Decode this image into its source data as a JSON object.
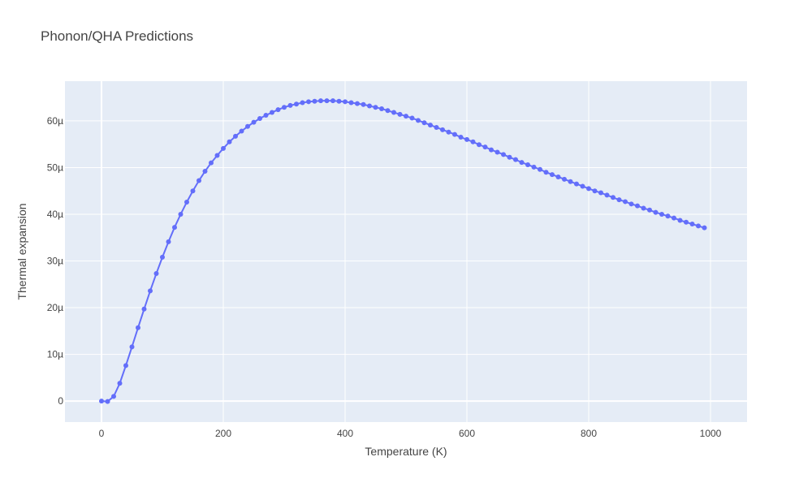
{
  "chart_data": {
    "type": "line",
    "title": "Phonon/QHA Predictions",
    "xlabel": "Temperature (K)",
    "ylabel": "Thermal expansion",
    "xlim": [
      -60,
      1060
    ],
    "ylim": [
      -4.5,
      68.5
    ],
    "x_ticks": [
      0,
      200,
      400,
      600,
      800,
      1000
    ],
    "x_tick_labels": [
      "0",
      "200",
      "400",
      "600",
      "800",
      "1000"
    ],
    "y_ticks": [
      0,
      10,
      20,
      30,
      40,
      50,
      60
    ],
    "y_tick_labels": [
      "0",
      "10µ",
      "20µ",
      "30µ",
      "40µ",
      "50µ",
      "60µ"
    ],
    "grid": true,
    "colors": {
      "plot_bg": "#e5ecf6",
      "series": "#636efa"
    },
    "series": [
      {
        "mode": "lines+markers",
        "x": [
          0,
          10,
          20,
          30,
          40,
          50,
          60,
          70,
          80,
          90,
          100,
          110,
          120,
          130,
          140,
          150,
          160,
          170,
          180,
          190,
          200,
          210,
          220,
          230,
          240,
          250,
          260,
          270,
          280,
          290,
          300,
          310,
          320,
          330,
          340,
          350,
          360,
          370,
          380,
          390,
          400,
          410,
          420,
          430,
          440,
          450,
          460,
          470,
          480,
          490,
          500,
          510,
          520,
          530,
          540,
          550,
          560,
          570,
          580,
          590,
          600,
          610,
          620,
          630,
          640,
          650,
          660,
          670,
          680,
          690,
          700,
          710,
          720,
          730,
          740,
          750,
          760,
          770,
          780,
          790,
          800,
          810,
          820,
          830,
          840,
          850,
          860,
          870,
          880,
          890,
          900,
          910,
          920,
          930,
          940,
          950,
          960,
          970,
          980,
          990
        ],
        "y": [
          0,
          -0.1,
          1.0,
          3.8,
          7.6,
          11.6,
          15.7,
          19.7,
          23.6,
          27.3,
          30.8,
          34.1,
          37.2,
          40.0,
          42.6,
          45.0,
          47.2,
          49.2,
          51.0,
          52.6,
          54.1,
          55.5,
          56.7,
          57.8,
          58.8,
          59.7,
          60.5,
          61.2,
          61.8,
          62.4,
          62.9,
          63.3,
          63.6,
          63.9,
          64.1,
          64.2,
          64.3,
          64.3,
          64.3,
          64.2,
          64.1,
          63.9,
          63.7,
          63.5,
          63.2,
          62.9,
          62.6,
          62.2,
          61.8,
          61.4,
          61.0,
          60.6,
          60.1,
          59.6,
          59.1,
          58.6,
          58.1,
          57.6,
          57.1,
          56.5,
          56.0,
          55.5,
          54.9,
          54.4,
          53.8,
          53.3,
          52.8,
          52.2,
          51.7,
          51.1,
          50.6,
          50.1,
          49.6,
          49.0,
          48.5,
          48.0,
          47.5,
          47.0,
          46.5,
          46.0,
          45.5,
          45.0,
          44.6,
          44.1,
          43.6,
          43.1,
          42.7,
          42.2,
          41.8,
          41.3,
          40.9,
          40.4,
          40.0,
          39.6,
          39.2,
          38.7,
          38.3,
          37.9,
          37.5,
          37.1
        ]
      }
    ]
  }
}
